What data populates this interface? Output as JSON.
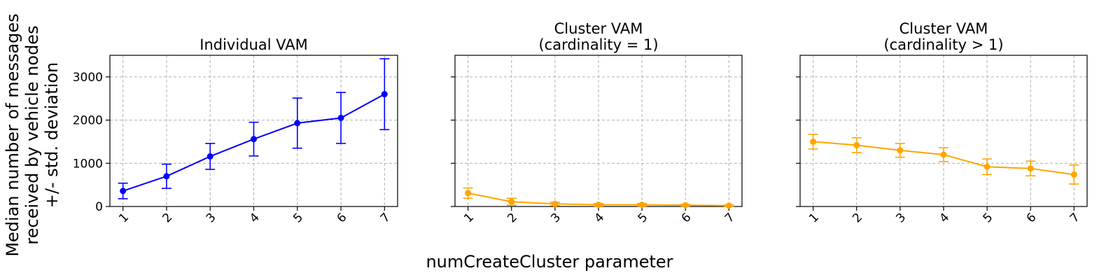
{
  "figure": {
    "ylabel_lines": [
      "Median number of messages",
      "received by vehicle nodes",
      "+/- std. deviation"
    ],
    "xlabel": "numCreateCluster parameter"
  },
  "chart_data": [
    {
      "type": "line",
      "title_lines": [
        "Individual VAM"
      ],
      "x": [
        1,
        2,
        3,
        4,
        5,
        6,
        7
      ],
      "xticks": [
        "1",
        "2",
        "3",
        "4",
        "5",
        "6",
        "7"
      ],
      "yticks": [
        "0",
        "1000",
        "2000",
        "3000"
      ],
      "show_ytick_labels": true,
      "ylim": [
        0,
        3500
      ],
      "grid": true,
      "color": "#0000ff",
      "series": [
        {
          "values": [
            360,
            700,
            1160,
            1560,
            1930,
            2050,
            2600
          ],
          "errors": [
            180,
            280,
            300,
            390,
            580,
            590,
            820
          ]
        }
      ]
    },
    {
      "type": "line",
      "title_lines": [
        "Cluster VAM",
        "(cardinality = 1)"
      ],
      "x": [
        1,
        2,
        3,
        4,
        5,
        6,
        7
      ],
      "xticks": [
        "1",
        "2",
        "3",
        "4",
        "5",
        "6",
        "7"
      ],
      "yticks": [
        "0",
        "1000",
        "2000",
        "3000"
      ],
      "show_ytick_labels": false,
      "ylim": [
        0,
        3500
      ],
      "grid": true,
      "color": "#ffa500",
      "series": [
        {
          "values": [
            310,
            110,
            60,
            40,
            40,
            30,
            20
          ],
          "errors": [
            120,
            80,
            40,
            30,
            30,
            20,
            15
          ]
        }
      ]
    },
    {
      "type": "line",
      "title_lines": [
        "Cluster VAM",
        "(cardinality > 1)"
      ],
      "x": [
        1,
        2,
        3,
        4,
        5,
        6,
        7
      ],
      "xticks": [
        "1",
        "2",
        "3",
        "4",
        "5",
        "6",
        "7"
      ],
      "yticks": [
        "0",
        "1000",
        "2000",
        "3000"
      ],
      "show_ytick_labels": false,
      "ylim": [
        0,
        3500
      ],
      "grid": true,
      "color": "#ffa500",
      "series": [
        {
          "values": [
            1500,
            1420,
            1300,
            1200,
            920,
            880,
            740
          ],
          "errors": [
            170,
            170,
            160,
            160,
            180,
            170,
            220
          ]
        }
      ]
    }
  ]
}
